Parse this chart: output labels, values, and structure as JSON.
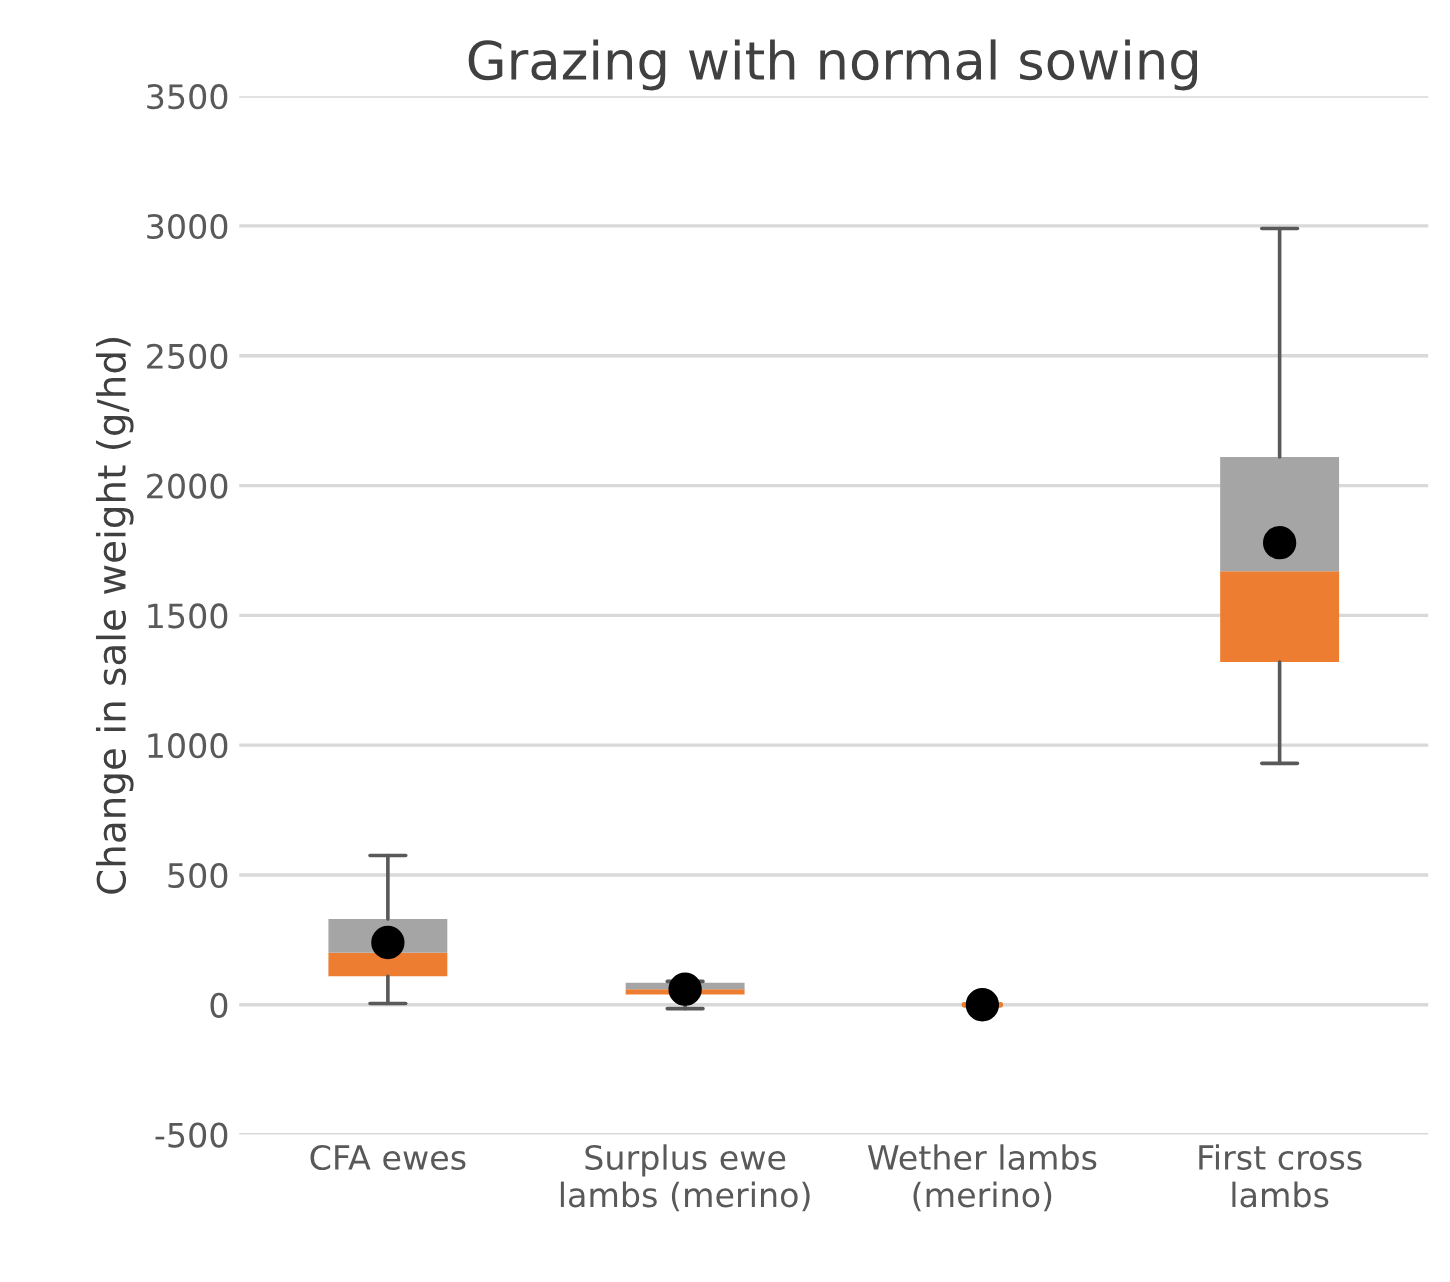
{
  "chart_data": {
    "type": "box",
    "title": "Grazing with normal sowing",
    "ylabel": "Change in sale weight (g/hd)",
    "categories": [
      "CFA ewes",
      "Surplus ewe lambs (merino)",
      "Wether lambs (merino)",
      "First cross lambs"
    ],
    "series": [
      {
        "color": "#a5a5a5",
        "colors": [
          "#ed7d31",
          "#ed7d31",
          "#ed7d31",
          "#ed7d31"
        ],
        "boxes": [
          {
            "low": 5,
            "q1": 110,
            "median": 200,
            "q3": 330,
            "high": 575,
            "mean": 240
          },
          {
            "low": -15,
            "q1": 40,
            "median": 60,
            "q3": 85,
            "high": 90,
            "mean": 60
          },
          {
            "low": 0,
            "q1": 0,
            "median": 0,
            "q3": 0,
            "high": 0,
            "mean": 0
          },
          {
            "low": 930,
            "q1": 1320,
            "median": 1670,
            "q3": 2110,
            "high": 2990,
            "mean": 1780
          }
        ]
      }
    ],
    "ylim": [
      -500,
      3500
    ],
    "yticks": [
      -500,
      0,
      500,
      1000,
      1500,
      2000,
      2500,
      3000,
      3500
    ],
    "grid": "y",
    "legend": false
  }
}
